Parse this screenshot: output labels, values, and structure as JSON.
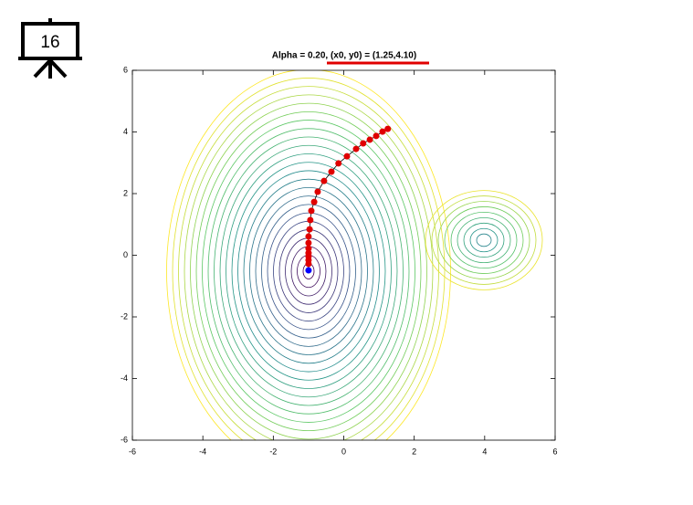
{
  "slide_number": "16",
  "chart_data": {
    "type": "path",
    "title": "Alpha = 0.20, (x0, y0) = (1.25,4.10)",
    "x": [
      1.25,
      1.1,
      0.92,
      0.74,
      0.55,
      0.35,
      0.09,
      -0.15,
      -0.35,
      -0.56,
      -0.74,
      -0.84,
      -0.92,
      -0.95,
      -0.97,
      -1.0,
      -1.0,
      -1.0,
      -1.0,
      -1.0,
      -1.0,
      -1.0
    ],
    "y": [
      4.1,
      4.01,
      3.87,
      3.75,
      3.63,
      3.45,
      3.21,
      2.98,
      2.71,
      2.41,
      2.06,
      1.73,
      1.44,
      1.14,
      0.84,
      0.61,
      0.4,
      0.22,
      0.07,
      -0.04,
      -0.16,
      -0.28
    ],
    "color": "#e00000",
    "end": {
      "x": -1.0,
      "y": -0.49,
      "color": "#0000ff"
    },
    "xlim": [
      -6,
      6
    ],
    "ylim": [
      -6,
      6
    ],
    "xticks": [
      -6,
      -4,
      -2,
      0,
      2,
      4,
      6
    ],
    "yticks": [
      -6,
      -4,
      -2,
      0,
      2,
      4,
      6
    ]
  }
}
